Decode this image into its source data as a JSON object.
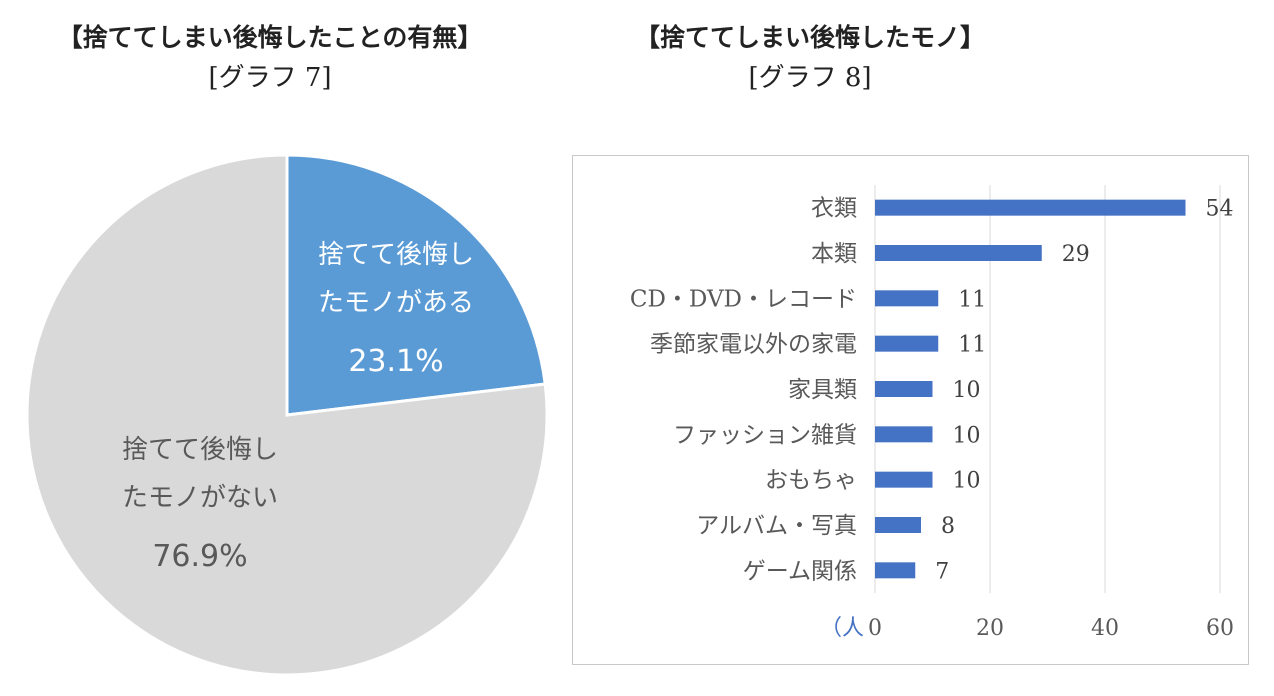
{
  "left_chart": {
    "title": "【捨ててしまい後悔したことの有無】",
    "subtitle": "[グラフ 7]"
  },
  "right_chart": {
    "title": "【捨ててしまい後悔したモノ】",
    "subtitle": "[グラフ 8]"
  },
  "chart_data": [
    {
      "type": "pie",
      "title": "【捨ててしまい後悔したことの有無】",
      "subtitle": "[グラフ 7]",
      "slices": [
        {
          "label_lines": [
            "捨てて後悔し",
            "たモノがある"
          ],
          "value": 23.1,
          "value_label": "23.1%",
          "color": "#5b9bd5"
        },
        {
          "label_lines": [
            "捨てて後悔し",
            "たモノがない"
          ],
          "value": 76.9,
          "value_label": "76.9%",
          "color": "#d9d9d9"
        }
      ]
    },
    {
      "type": "bar",
      "orientation": "horizontal",
      "title": "【捨ててしまい後悔したモノ】",
      "subtitle": "[グラフ 8]",
      "categories": [
        "衣類",
        "本類",
        "CD・DVD・レコード",
        "季節家電以外の家電",
        "家具類",
        "ファッション雑貨",
        "おもちゃ",
        "アルバム・写真",
        "ゲーム関係"
      ],
      "values": [
        54,
        29,
        11,
        11,
        10,
        10,
        10,
        8,
        7
      ],
      "xlim": [
        0,
        60
      ],
      "xticks": [
        0,
        20,
        40,
        60
      ],
      "unit_label": "（人",
      "bar_color": "#4472c4",
      "grid": true
    }
  ]
}
